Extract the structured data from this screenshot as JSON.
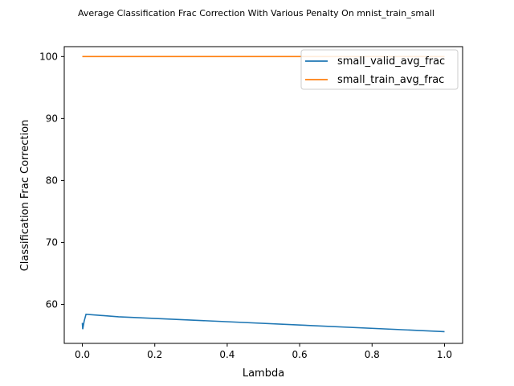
{
  "chart_data": {
    "type": "line",
    "title": "Average Classification Frac Correction With Various Penalty On mnist_train_small",
    "xlabel": "Lambda",
    "ylabel": "Classification Frac Correction",
    "xlim": [
      -0.05,
      1.05
    ],
    "ylim": [
      53.7,
      101.6
    ],
    "xticks": [
      0.0,
      0.2,
      0.4,
      0.6,
      0.8,
      1.0
    ],
    "xtick_labels": [
      "0.0",
      "0.2",
      "0.4",
      "0.6",
      "0.8",
      "1.0"
    ],
    "yticks": [
      60,
      70,
      80,
      90,
      100
    ],
    "ytick_labels": [
      "60",
      "70",
      "80",
      "90",
      "100"
    ],
    "grid": false,
    "legend_position": "top-right",
    "series": [
      {
        "name": "small_valid_avg_frac",
        "color": "#1f77b4",
        "x": [
          0.0,
          0.001,
          0.005,
          0.01,
          0.1,
          1.0
        ],
        "y": [
          57.0,
          56.0,
          57.3,
          58.4,
          58.0,
          55.6
        ]
      },
      {
        "name": "small_train_avg_frac",
        "color": "#ff7f0e",
        "x": [
          0.0,
          0.001,
          0.005,
          0.01,
          0.1,
          1.0
        ],
        "y": [
          100.0,
          100.0,
          100.0,
          100.0,
          100.0,
          100.0
        ]
      }
    ]
  }
}
